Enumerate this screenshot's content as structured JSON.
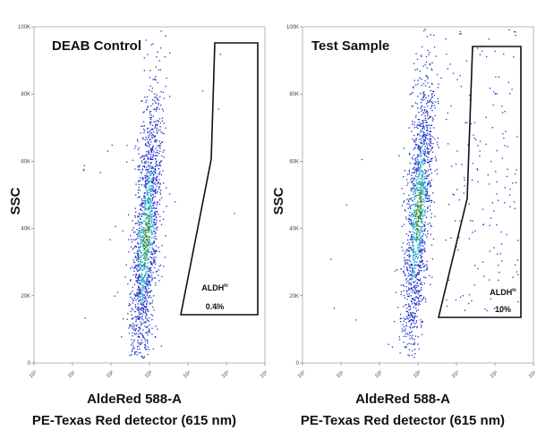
{
  "chart_data": [
    {
      "type": "scatter",
      "title": "DEAB Control",
      "xlabel": "AldeRed 588-A",
      "xlabel_sub": "PE-Texas Red detector (615 nm)",
      "ylabel": "SSC",
      "x_scale": "log",
      "xlim": [
        1,
        1000000
      ],
      "ylim": [
        0,
        100000
      ],
      "x_ticks": [
        "10⁰",
        "10¹",
        "10²",
        "10³",
        "10⁴",
        "10⁵",
        "10⁶"
      ],
      "y_ticks": [
        "0",
        "20K",
        "40K",
        "60K",
        "80K",
        "100K"
      ],
      "gate": {
        "label": "ALDH",
        "label_sup": "hi",
        "percent": "0.4%"
      },
      "population": {
        "center_x_decade": 2.9,
        "center_y": 38000,
        "sparse_fraction": 0.004
      }
    },
    {
      "type": "scatter",
      "title": "Test Sample",
      "xlabel": "AldeRed 588-A",
      "xlabel_sub": "PE-Texas Red detector (615 nm)",
      "ylabel": "SSC",
      "x_scale": "log",
      "xlim": [
        1,
        1000000
      ],
      "ylim": [
        0,
        100000
      ],
      "x_ticks": [
        "10⁰",
        "10¹",
        "10²",
        "10³",
        "10⁴",
        "10⁵",
        "10⁶"
      ],
      "y_ticks": [
        "0",
        "20K",
        "40K",
        "60K",
        "80K",
        "100K"
      ],
      "gate": {
        "label": "ALDH",
        "label_sup": "hi",
        "percent": "10%"
      },
      "population": {
        "center_x_decade": 3.0,
        "center_y": 45000,
        "sparse_fraction": 0.1
      }
    }
  ],
  "colors": {
    "dense": "#2f8c3a",
    "mid": "#1aa6c8",
    "sparse": "#1b2fc8",
    "gate": "#111111"
  }
}
